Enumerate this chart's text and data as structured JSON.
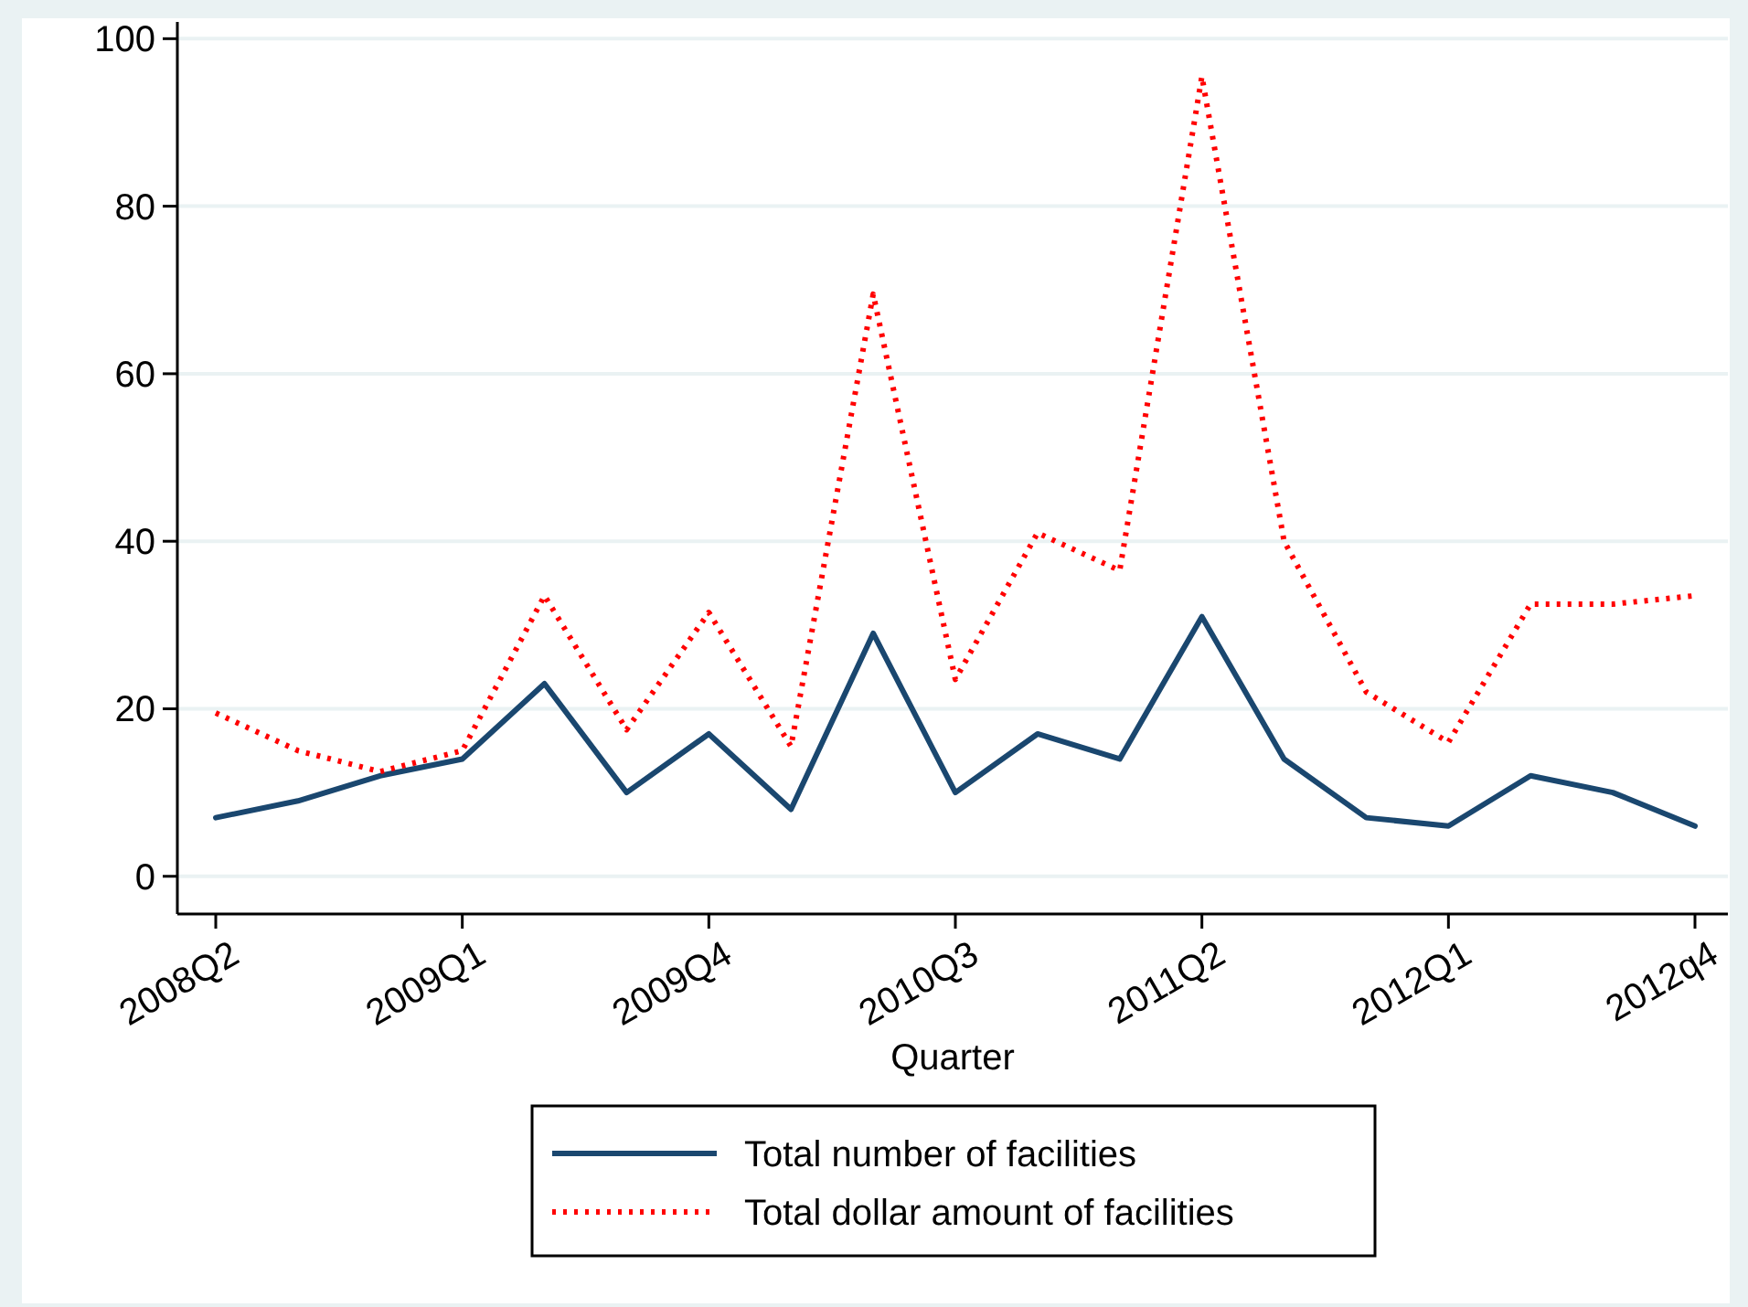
{
  "chart_data": {
    "type": "line",
    "xlabel": "Quarter",
    "categories": [
      "2008Q2",
      null,
      null,
      "2009Q1",
      null,
      null,
      "2009Q4",
      null,
      null,
      "2010Q3",
      null,
      null,
      "2011Q2",
      null,
      null,
      "2012Q1",
      null,
      null,
      "2012q4"
    ],
    "series": [
      {
        "name": "Total number of facilities",
        "color": "#1a476f",
        "line_style": "solid",
        "values": [
          7,
          9,
          12,
          14,
          23,
          10,
          17,
          8,
          29,
          10,
          17,
          14,
          31,
          14,
          7,
          6,
          12,
          10,
          6
        ]
      },
      {
        "name": "Total dollar amount of facilities",
        "color": "#ff0000",
        "line_style": "dotted",
        "values": [
          19.5,
          15,
          12.5,
          15,
          33.5,
          17.5,
          31.5,
          15.5,
          69.5,
          23.5,
          41,
          36.5,
          95.5,
          40,
          22,
          16,
          32.5,
          32.5,
          33.5
        ]
      }
    ],
    "ylim": [
      -4.5,
      102
    ],
    "yticks": [
      0,
      20,
      40,
      60,
      80,
      100
    ],
    "grid": "y",
    "legend": "bottom",
    "marker": "none"
  }
}
